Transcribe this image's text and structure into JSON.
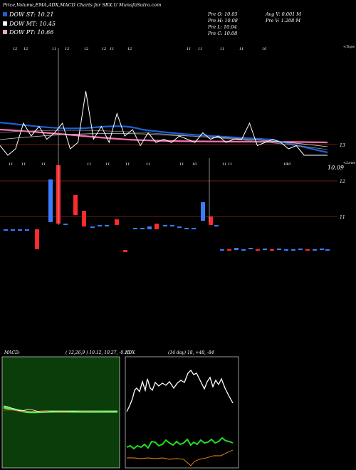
{
  "header": {
    "title": "Price,Volume,EMA,ADX,MACD Charts for SRX.U MunafaSutra.com",
    "dow_st": "DOW ST: 10.21",
    "dow_mt": "DOW MT: 10.45",
    "dow_pt": "DOW PT: 10.66",
    "prev_o": "Pre   O: 10.05",
    "prev_h": "Pre   H: 10.08",
    "prev_l": "Pre   L: 10.04",
    "prev_c": "Pre   C: 10.08",
    "avg_v": "Avg V: 0.001 M",
    "prev_v": "Pre   V: 1.208  M"
  },
  "colors": {
    "dow_st": "#1e5fd6",
    "dow_mt": "#ffffff",
    "dow_pt": "#f4a3c8",
    "ema_fast": "#1e5fd6",
    "ema_slow": "#ff6fb0",
    "bull": "#3a7bff",
    "bear": "#ff2a2a",
    "grid": "#8b2a1a",
    "macd_panel": "#0b3d0b"
  },
  "chart_data": [
    {
      "type": "line",
      "title": "Price,Volume,EMA,ADX,MACD Charts for SRX.U MunafaSutra.com",
      "y_ticks": [
        "13",
        "12",
        "11"
      ],
      "price_label": "10.09",
      "top_label": "<Tops",
      "bottom_label": "<Lows",
      "top_marks": [
        "12",
        "12",
        "11",
        "12",
        "12",
        "12",
        "11",
        "12",
        "11",
        "11",
        "11",
        "11",
        "10"
      ],
      "low_marks": [
        "11",
        "11",
        "11",
        "11",
        "11",
        "11",
        "11",
        "11",
        "10",
        "11",
        "11",
        "10",
        "10"
      ],
      "series": [
        {
          "name": "price",
          "values": [
            12.9,
            12.6,
            12.8,
            13.6,
            13.2,
            13.5,
            13.1,
            13.3,
            13.6,
            12.8,
            13.0,
            14.6,
            13.1,
            13.5,
            13.0,
            13.9,
            13.2,
            13.4,
            12.9,
            13.3,
            13.0,
            13.1,
            13.0,
            13.2,
            13.1,
            13.0,
            13.3,
            13.1,
            13.2,
            13.0,
            13.1,
            13.1,
            13.6,
            12.9,
            13.0,
            13.1,
            13.0,
            12.8,
            12.9,
            12.6,
            12.6,
            12.6,
            12.6
          ]
        }
      ]
    },
    {
      "type": "line",
      "title": "MACD:",
      "params": "( 12,26,9 ) 10.12,  10.27,  -0.15"
    },
    {
      "type": "line",
      "title": "ADX",
      "params": "(14  day) 18,  +48,  -84"
    }
  ]
}
